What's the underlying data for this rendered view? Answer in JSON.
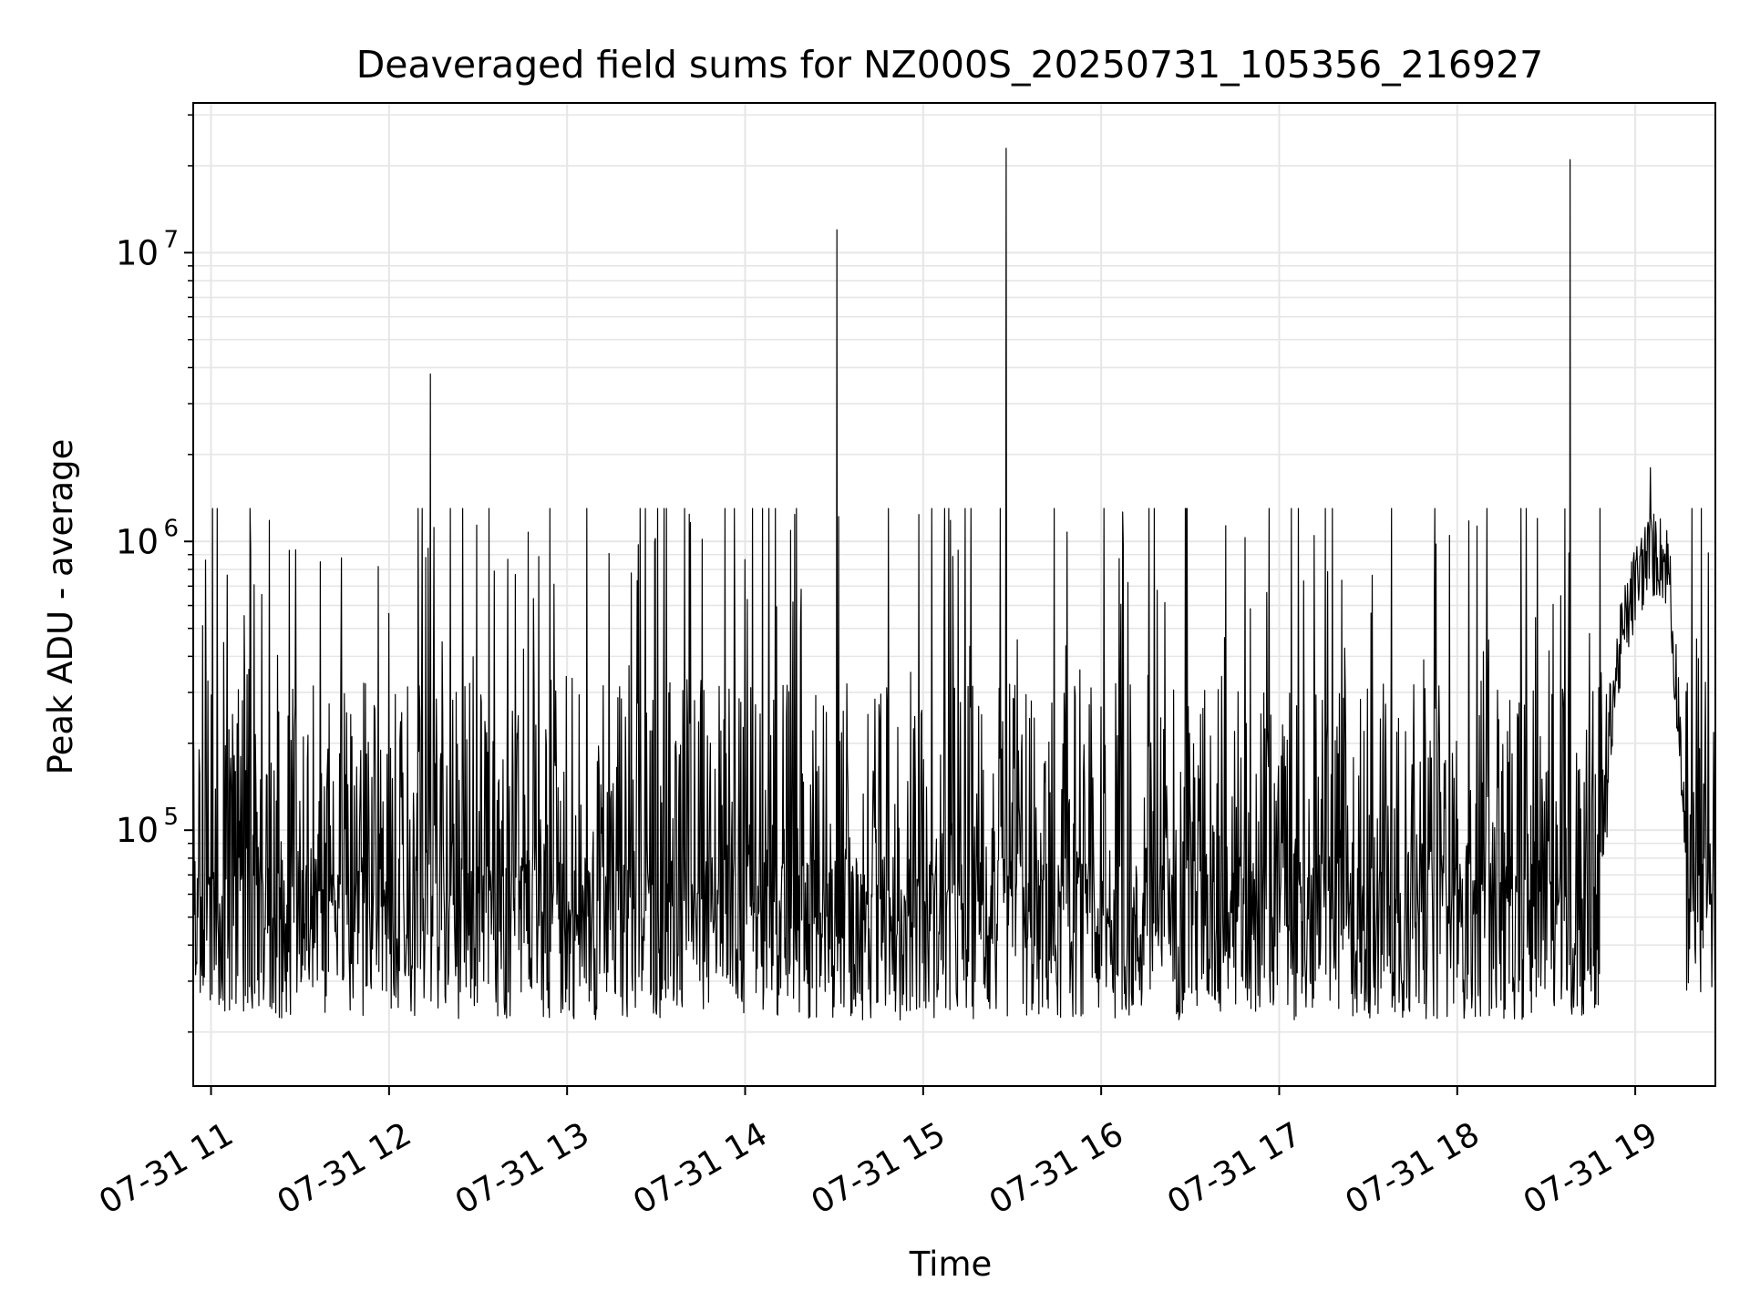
{
  "chart_data": {
    "type": "line",
    "title": "Deaveraged field sums for NZ000S_20250731_105356_216927",
    "xlabel": "Time",
    "ylabel": "Peak ADU - average",
    "yscale": "log",
    "grid": true,
    "line_color": "#000000",
    "grid_color": "#e6e6e6",
    "xlim": [
      "2025-07-31 10:54",
      "2025-07-31 19:27"
    ],
    "ylim": [
      13000,
      33000000
    ],
    "x_ticks": [
      {
        "value": "2025-07-31 11:00",
        "label": "07-31 11"
      },
      {
        "value": "2025-07-31 12:00",
        "label": "07-31 12"
      },
      {
        "value": "2025-07-31 13:00",
        "label": "07-31 13"
      },
      {
        "value": "2025-07-31 14:00",
        "label": "07-31 14"
      },
      {
        "value": "2025-07-31 15:00",
        "label": "07-31 15"
      },
      {
        "value": "2025-07-31 16:00",
        "label": "07-31 16"
      },
      {
        "value": "2025-07-31 17:00",
        "label": "07-31 17"
      },
      {
        "value": "2025-07-31 18:00",
        "label": "07-31 18"
      },
      {
        "value": "2025-07-31 19:00",
        "label": "07-31 19"
      }
    ],
    "y_ticks": [
      {
        "value": 100000,
        "label": "10",
        "exp": "5"
      },
      {
        "value": 1000000,
        "label": "10",
        "exp": "6"
      },
      {
        "value": 10000000,
        "label": "10",
        "exp": "7"
      }
    ],
    "series": [
      {
        "values_note_free": true,
        "x_start": "2025-07-31 10:54",
        "x_end": "2025-07-31 19:27",
        "notable_points": [
          {
            "x": "2025-07-31 12:14",
            "y": 3800000
          },
          {
            "x": "2025-07-31 14:31",
            "y": 12000000
          },
          {
            "x": "2025-07-31 15:28",
            "y": 23000000
          },
          {
            "x": "2025-07-31 18:38",
            "y": 21000000
          },
          {
            "x": "2025-07-31 19:05",
            "y": 1800000
          }
        ]
      }
    ]
  }
}
